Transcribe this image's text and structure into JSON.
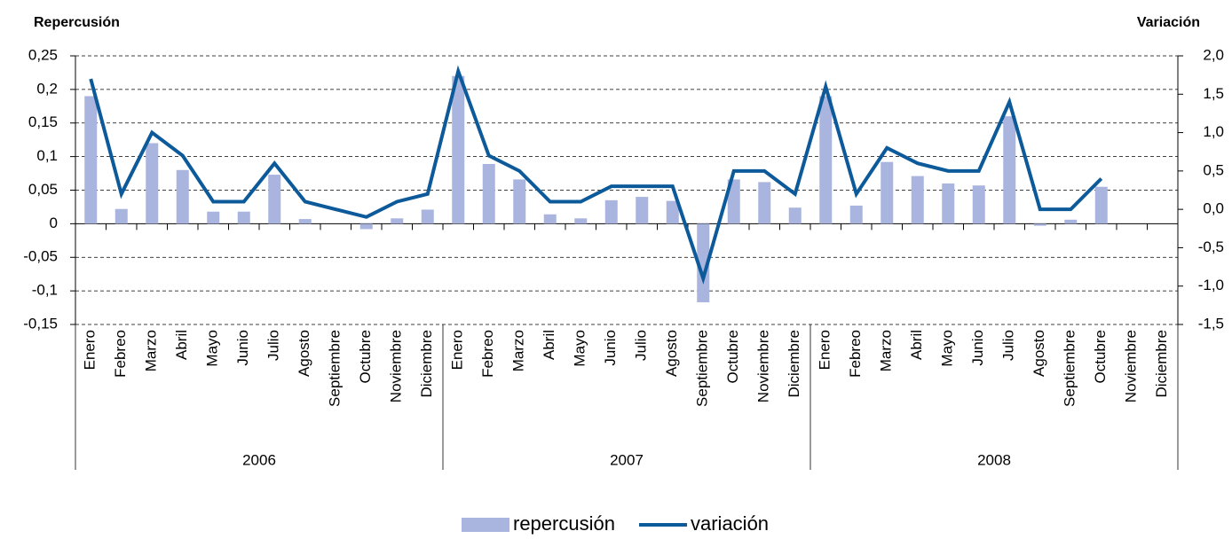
{
  "chart_data": {
    "type": "bar_line",
    "y_title": "Repercusión",
    "y2_title": "Variación",
    "categories": [
      "Enero",
      "Febreo",
      "Marzo",
      "Abril",
      "Mayo",
      "Junio",
      "Julio",
      "Agosto",
      "Septiembre",
      "Octubre",
      "Noviembre",
      "Diciembre",
      "Enero",
      "Febreo",
      "Marzo",
      "Abril",
      "Mayo",
      "Junio",
      "Julio",
      "Agosto",
      "Septiembre",
      "Octubre",
      "Noviembre",
      "Diciembre",
      "Enero",
      "Febreo",
      "Marzo",
      "Abril",
      "Mayo",
      "Junio",
      "Julio",
      "Agosto",
      "Septiembre",
      "Octubre",
      "Noviembre",
      "Diciembre"
    ],
    "category_groups": [
      "2006",
      "2007",
      "2008"
    ],
    "series": [
      {
        "name": "repercusión",
        "color": "#a9b5de",
        "kind": "bar",
        "values": [
          0.19,
          0.022,
          0.12,
          0.08,
          0.018,
          0.018,
          0.073,
          0.007,
          0,
          -0.008,
          0.008,
          0.021,
          0.22,
          0.089,
          0.066,
          0.014,
          0.008,
          0.035,
          0.04,
          0.034,
          -0.117,
          0.066,
          0.062,
          0.024,
          0.19,
          0.027,
          0.092,
          0.071,
          0.06,
          0.057,
          0.16,
          -0.003,
          0.006,
          0.055,
          null,
          null
        ]
      },
      {
        "name": "variación",
        "color": "#0d5a9a",
        "kind": "line",
        "axis": "y2",
        "values": [
          1.7,
          0.2,
          1.0,
          0.7,
          0.1,
          0.1,
          0.6,
          0.1,
          0.0,
          -0.1,
          0.1,
          0.2,
          1.8,
          0.7,
          0.5,
          0.1,
          0.1,
          0.3,
          0.3,
          0.3,
          -0.9,
          0.5,
          0.5,
          0.2,
          1.6,
          0.2,
          0.8,
          0.6,
          0.5,
          0.5,
          1.4,
          0.0,
          0.0,
          0.4,
          null,
          null
        ]
      }
    ],
    "ylim": [
      -0.15,
      0.25
    ],
    "yticks": [
      {
        "value": -0.15,
        "label": "-0,15"
      },
      {
        "value": -0.1,
        "label": "-0,1"
      },
      {
        "value": -0.05,
        "label": "-0,05"
      },
      0,
      {
        "value": 0.05,
        "label": "0,05"
      },
      {
        "value": 0.1,
        "label": "0,1"
      },
      {
        "value": 0.15,
        "label": "0,15"
      },
      {
        "value": 0.2,
        "label": "0,2"
      },
      {
        "value": 0.25,
        "label": "0,25"
      }
    ],
    "y2lim": [
      -1.5,
      2.0
    ],
    "y2ticks": [
      {
        "value": -1.5,
        "label": "-1,5"
      },
      {
        "value": -1.0,
        "label": "-1,0"
      },
      {
        "value": -0.5,
        "label": "-0,5"
      },
      {
        "value": 0.0,
        "label": "0,0"
      },
      {
        "value": 0.5,
        "label": "0,5"
      },
      {
        "value": 1.0,
        "label": "1,0"
      },
      {
        "value": 1.5,
        "label": "1,5"
      },
      {
        "value": 2.0,
        "label": "2,0"
      }
    ],
    "grid": true
  }
}
